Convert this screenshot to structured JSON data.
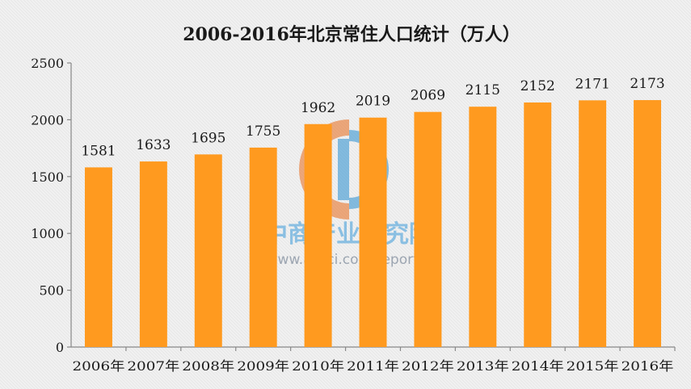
{
  "chart_data": {
    "type": "bar",
    "title": "2006-2016年北京常住人口统计（万人）",
    "categories": [
      "2006年",
      "2007年",
      "2008年",
      "2009年",
      "2010年",
      "2011年",
      "2012年",
      "2013年",
      "2014年",
      "2015年",
      "2016年"
    ],
    "values": [
      1581,
      1633,
      1695,
      1755,
      1962,
      2019,
      2069,
      2115,
      2152,
      2171,
      2173
    ],
    "data_labels": [
      "1581",
      "1633",
      "1695",
      "1755",
      "1962",
      "2019",
      "2069",
      "2115",
      "2152",
      "2171",
      "2173"
    ],
    "yticks": [
      0,
      500,
      1000,
      1500,
      2000,
      2500
    ],
    "ytick_labels": [
      "0",
      "500",
      "1000",
      "1500",
      "2000",
      "2500"
    ],
    "ylim": [
      0,
      2500
    ],
    "xlabel": "",
    "ylabel": "",
    "grid": false,
    "legend": "none",
    "bar_color": "#ff9a1f"
  },
  "watermark": {
    "name": "中商产业研究院",
    "url": "www.askci.com/reports/"
  }
}
